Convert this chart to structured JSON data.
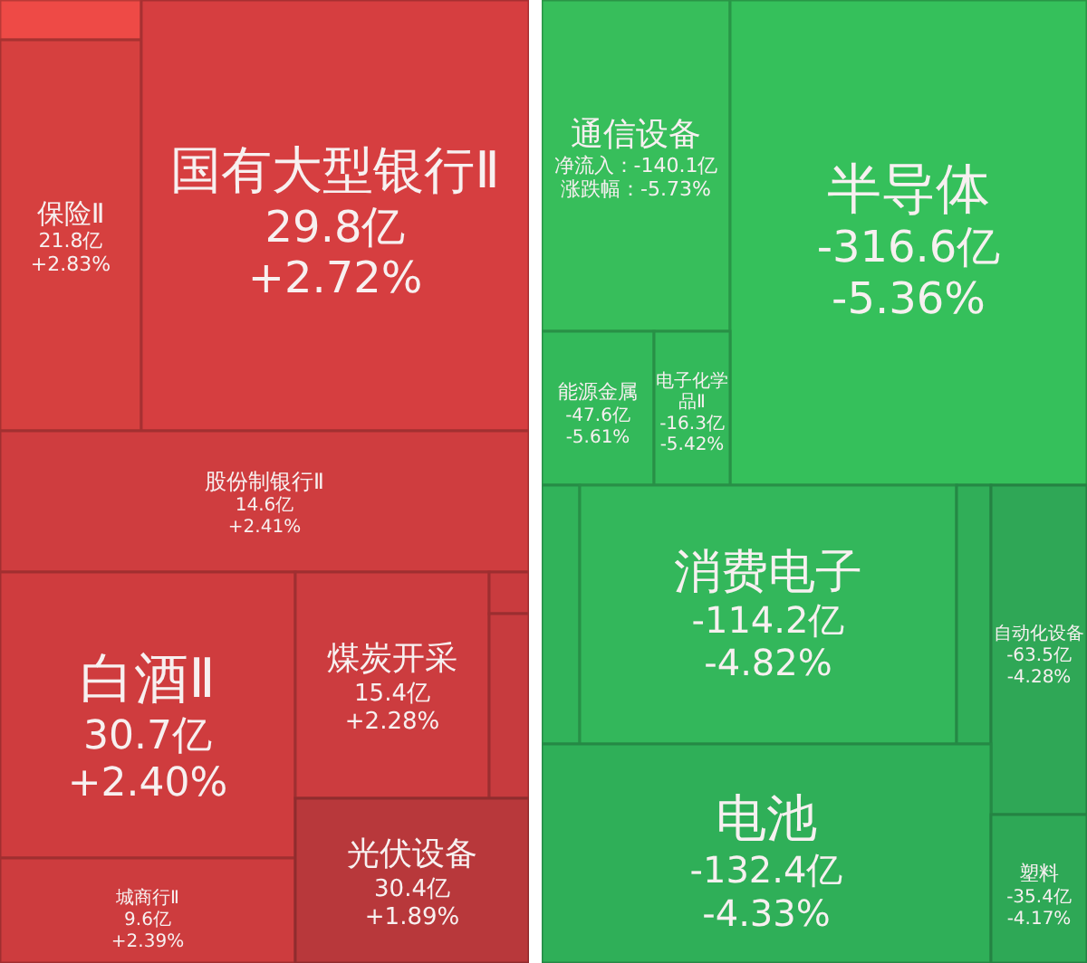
{
  "chart_data": [
    {
      "type": "other",
      "categories": [
        null,
        "保险Ⅱ",
        "国有大型银行Ⅱ",
        "股份制银行Ⅱ",
        "白酒Ⅱ",
        "煤炭开采",
        null,
        null,
        "城商行Ⅱ",
        "光伏设备"
      ],
      "series": [
        {
          "values": [
            null,
            21.8,
            29.8,
            14.6,
            30.7,
            15.4,
            null,
            null,
            9.6,
            30.4
          ],
          "value_labels": [
            null,
            "21.8亿",
            "29.8亿",
            "14.6亿",
            "30.7亿",
            "15.4亿",
            null,
            null,
            "9.6亿",
            "30.4亿"
          ],
          "colors": [
            "#ee4a46",
            "#d6403f",
            "#d63e40",
            "#cf3d3f",
            "#cf3c3e",
            "#cc3c3f",
            "#c93b3e",
            "#c73b3e",
            "#cd3c3e",
            "#b8383b"
          ]
        },
        {
          "values": [
            null,
            2.83,
            2.72,
            2.41,
            2.4,
            2.28,
            null,
            null,
            2.39,
            1.89
          ],
          "value_labels": [
            null,
            "+2.83%",
            "+2.72%",
            "+2.41%",
            "+2.40%",
            "+2.28%",
            null,
            null,
            "+2.39%",
            "+1.89%"
          ]
        }
      ]
    },
    {
      "type": "other",
      "categories": [
        "通信设备",
        "半导体",
        "能源金属",
        "电子化学品Ⅱ",
        null,
        "消费电子",
        null,
        "自动化设备",
        "电池",
        "塑料"
      ],
      "series": [
        {
          "values": [
            -140.1,
            -316.6,
            -47.6,
            -16.3,
            null,
            -114.2,
            null,
            -63.5,
            -132.4,
            -35.4
          ],
          "value_labels": [
            "净流入：-140.1亿",
            "-316.6亿",
            "-47.6亿",
            "-16.3亿",
            null,
            "-114.2亿",
            null,
            "-63.5亿",
            "-132.4亿",
            "-35.4亿"
          ],
          "colors": [
            "#37be5b",
            "#35c05b",
            "#33b95a",
            "#33b95a",
            "#31b35a",
            "#33b75b",
            "#30ae58",
            "#2fa756",
            "#2faf58",
            "#2ea856"
          ]
        },
        {
          "values": [
            -5.73,
            -5.36,
            -5.61,
            -5.42,
            null,
            -4.82,
            null,
            -4.28,
            -4.33,
            -4.17
          ],
          "value_labels": [
            "涨跌幅：-5.73%",
            "-5.36%",
            "-5.61%",
            "-5.42%",
            null,
            "-4.82%",
            null,
            "-4.28%",
            "-4.33%",
            "-4.17%"
          ]
        }
      ]
    }
  ]
}
